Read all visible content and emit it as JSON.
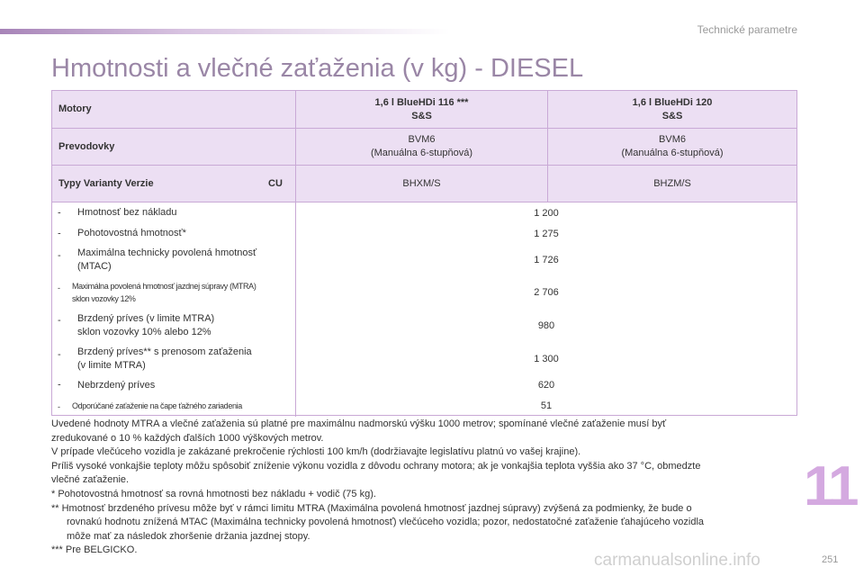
{
  "header": {
    "section": "Technické parametre"
  },
  "title": "Hmotnosti a vlečné zaťaženia (v kg) - DIESEL",
  "table": {
    "header": {
      "motors": {
        "label": "Motory",
        "columns": [
          [
            "1,6 l BlueHDi 116 ***",
            "S&S"
          ],
          [
            "1,6 l BlueHDi 120",
            "S&S"
          ]
        ]
      },
      "gearbox": {
        "label": "Prevodovky",
        "columns": [
          [
            "BVM6",
            "(Manuálna 6-stupňová)"
          ],
          [
            "BVM6",
            "(Manuálna 6-stupňová)"
          ]
        ]
      },
      "types": {
        "label": "Typy Varianty Verzie",
        "code": "CU",
        "columns": [
          "BHXM/S",
          "BHZM/S"
        ]
      }
    },
    "rows": [
      {
        "label": [
          "Hmotnosť bez nákladu"
        ],
        "value": "1 200"
      },
      {
        "label": [
          "Pohotovostná hmotnosť*"
        ],
        "value": "1 275"
      },
      {
        "label": [
          "Maximálna technicky povolená hmotnosť",
          "(MTAC)"
        ],
        "value": "1 726"
      },
      {
        "label": [
          "Maximálna povolená hmotnosť jazdnej súpravy (MTRA)",
          "sklon vozovky 12%"
        ],
        "value": "2 706"
      },
      {
        "label": [
          "Brzdený príves (v limite MTRA)",
          "sklon vozovky 10% alebo 12%"
        ],
        "value": "980"
      },
      {
        "label": [
          "Brzdený príves** s prenosom zaťaženia",
          "(v limite MTRA)"
        ],
        "value": "1 300"
      },
      {
        "label": [
          "Nebrzdený príves"
        ],
        "value": "620"
      },
      {
        "label": [
          "Odporúčané zaťaženie na čape ťažného zariadenia"
        ],
        "value": "51"
      }
    ]
  },
  "notes": [
    "Uvedené hodnoty MTRA a vlečné zaťaženia sú platné pre maximálnu nadmorskú výšku 1000 metrov; spomínané vlečné zaťaženie musí byť",
    "zredukované o 10 % každých ďalších 1000 výškových metrov.",
    "V prípade vlečúceho vozidla je zakázané prekročenie rýchlosti 100 km/h (dodržiavajte legislatívu platnú vo vašej krajine).",
    "Príliš vysoké vonkajšie teploty môžu spôsobiť zníženie výkonu vozidla z dôvodu ochrany motora; ak je vonkajšia teplota vyššia ako 37 °C, obmedzte",
    "vlečné zaťaženie.",
    "* Pohotovostná hmotnosť sa rovná hmotnosti bez nákladu + vodič (75 kg).",
    "** Hmotnosť brzdeného prívesu môže byť v rámci limitu MTRA (Maximálna povolená hmotnosť jazdnej súpravy) zvýšená za podmienky, že bude o",
    "rovnakú hodnotu znížená MTAC (Maximálna technicky povolená hmotnosť) vlečúceho vozidla; pozor, nedostatočné zaťaženie ťahajúceho vozidla",
    "môže mať za následok zhoršenie držania jazdnej stopy.",
    "*** Pre BELGICKO."
  ],
  "chapter": "11",
  "page_number": "251",
  "watermark": "carmanualsonline.info"
}
